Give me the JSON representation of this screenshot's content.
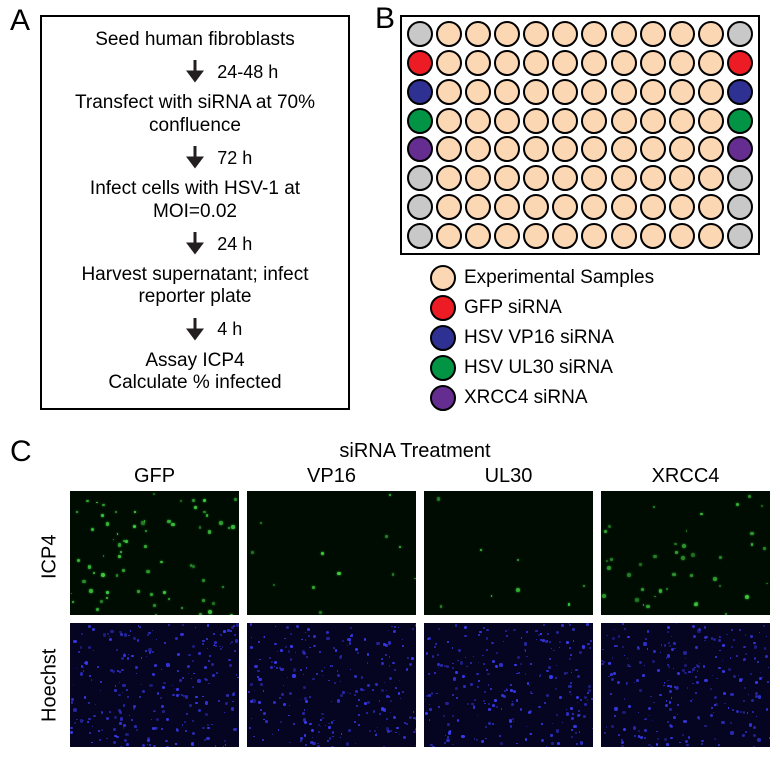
{
  "panelA": {
    "label": "A",
    "steps": [
      "Seed human fibroblasts",
      "Transfect with siRNA at 70% confluence",
      "Infect cells with HSV-1 at MOI=0.02",
      "Harvest supernatant; infect reporter plate",
      "Assay ICP4\nCalculate % infected"
    ],
    "arrows": [
      "24-48 h",
      "72 h",
      "24 h",
      "4 h"
    ],
    "box_border_color": "#000000",
    "font_size": 19,
    "arrow_color": "#231f20"
  },
  "panelB": {
    "label": "B",
    "plate": {
      "rows": 8,
      "cols": 12,
      "border_color": "#000000",
      "well_stroke_width": 2,
      "layout_note": "col0 and col11 are control columns; row0 and rows5-7 in those columns are silver; rows1-4 in those columns are red/blue/green/purple respectively; all interior wells are experimental",
      "colors": {
        "experimental": "#fcd7b3",
        "silver": "#c8c8c8",
        "red": "#ed1c24",
        "blue": "#2e3192",
        "green": "#009444",
        "purple": "#662d91"
      }
    },
    "legend": [
      {
        "color": "#fcd7b3",
        "label": "Experimental Samples"
      },
      {
        "color": "#ed1c24",
        "label": "GFP siRNA"
      },
      {
        "color": "#2e3192",
        "label": "HSV VP16 siRNA"
      },
      {
        "color": "#009444",
        "label": "HSV UL30 siRNA"
      },
      {
        "color": "#662d91",
        "label": "XRCC4 siRNA"
      }
    ]
  },
  "panelC": {
    "label": "C",
    "title": "siRNA Treatment",
    "columns": [
      "GFP",
      "VP16",
      "UL30",
      "XRCC4"
    ],
    "rows": [
      "ICP4",
      "Hoechst"
    ],
    "micrograph_style": {
      "icp4_bg": "#000c02",
      "icp4_dot_color": "#3fcf3f",
      "hoechst_bg": "#050522",
      "hoechst_dot_color": "#3a3af0",
      "icp4_density": {
        "GFP": 70,
        "VP16": 12,
        "UL30": 8,
        "XRCC4": 40
      },
      "hoechst_density": 250,
      "dot_size_range": [
        1.5,
        4
      ]
    }
  }
}
